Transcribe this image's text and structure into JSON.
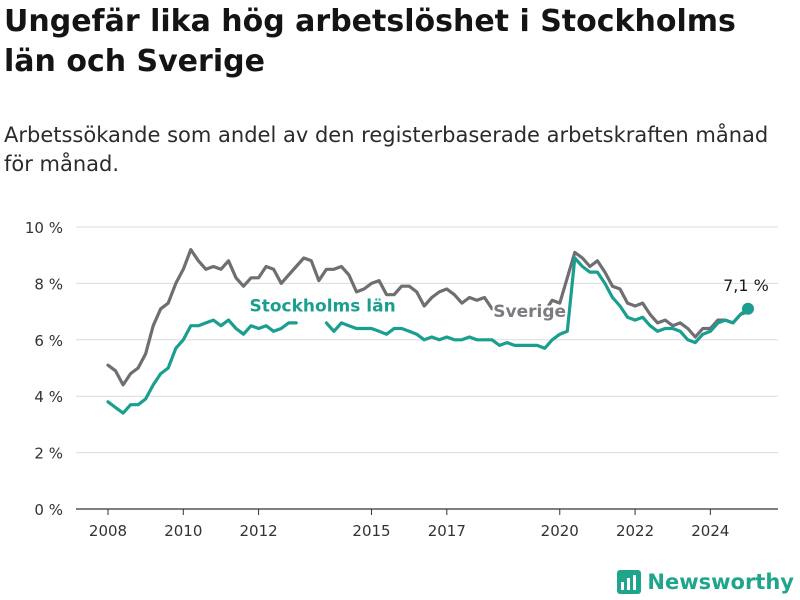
{
  "chart_data": {
    "type": "line",
    "title": "Ungefär lika hög arbetslöshet i Stockholms län och Sverige",
    "subtitle": "Arbetssökande som andel av den registerbaserade arbetskraften månad för månad.",
    "xlabel": "",
    "ylabel": "",
    "xlim": [
      2008.0,
      2025.0
    ],
    "ylim": [
      0,
      10
    ],
    "x_ticks": [
      2008,
      2010,
      2012,
      2015,
      2017,
      2020,
      2022,
      2024
    ],
    "x_tick_labels": [
      "2008",
      "2010",
      "2012",
      "2015",
      "2017",
      "2020",
      "2022",
      "2024"
    ],
    "y_ticks": [
      0,
      2,
      4,
      6,
      8,
      10
    ],
    "y_tick_labels": [
      "0 %",
      "2 %",
      "4 %",
      "6 %",
      "8 %",
      "10 %"
    ],
    "grid": "horizontal",
    "series": [
      {
        "name": "Sverige",
        "color": "#6e6e73",
        "points": [
          [
            2008.0,
            5.1
          ],
          [
            2008.2,
            4.9
          ],
          [
            2008.4,
            4.4
          ],
          [
            2008.6,
            4.8
          ],
          [
            2008.8,
            5.0
          ],
          [
            2009.0,
            5.5
          ],
          [
            2009.2,
            6.5
          ],
          [
            2009.4,
            7.1
          ],
          [
            2009.6,
            7.3
          ],
          [
            2009.8,
            8.0
          ],
          [
            2010.0,
            8.5
          ],
          [
            2010.2,
            9.2
          ],
          [
            2010.4,
            8.8
          ],
          [
            2010.6,
            8.5
          ],
          [
            2010.8,
            8.6
          ],
          [
            2011.0,
            8.5
          ],
          [
            2011.2,
            8.8
          ],
          [
            2011.4,
            8.2
          ],
          [
            2011.6,
            7.9
          ],
          [
            2011.8,
            8.2
          ],
          [
            2012.0,
            8.2
          ],
          [
            2012.2,
            8.6
          ],
          [
            2012.4,
            8.5
          ],
          [
            2012.6,
            8.0
          ],
          [
            2012.8,
            8.3
          ],
          [
            2013.0,
            8.6
          ],
          [
            2013.2,
            8.9
          ],
          [
            2013.4,
            8.8
          ],
          [
            2013.6,
            8.1
          ],
          [
            2013.8,
            8.5
          ],
          [
            2014.0,
            8.5
          ],
          [
            2014.2,
            8.6
          ],
          [
            2014.4,
            8.3
          ],
          [
            2014.6,
            7.7
          ],
          [
            2014.8,
            7.8
          ],
          [
            2015.0,
            8.0
          ],
          [
            2015.2,
            8.1
          ],
          [
            2015.4,
            7.6
          ],
          [
            2015.6,
            7.6
          ],
          [
            2015.8,
            7.9
          ],
          [
            2016.0,
            7.9
          ],
          [
            2016.2,
            7.7
          ],
          [
            2016.4,
            7.2
          ],
          [
            2016.6,
            7.5
          ],
          [
            2016.8,
            7.7
          ],
          [
            2017.0,
            7.8
          ],
          [
            2017.2,
            7.6
          ],
          [
            2017.4,
            7.3
          ],
          [
            2017.6,
            7.5
          ],
          [
            2017.8,
            7.4
          ],
          [
            2018.0,
            7.5
          ],
          [
            2018.2,
            7.1
          ]
        ]
      },
      {
        "name": "Sverige",
        "color": "#6e6e73",
        "points": [
          [
            2019.6,
            7.0
          ],
          [
            2019.8,
            7.4
          ],
          [
            2020.0,
            7.3
          ],
          [
            2020.2,
            8.2
          ],
          [
            2020.4,
            9.1
          ],
          [
            2020.6,
            8.9
          ],
          [
            2020.8,
            8.6
          ],
          [
            2021.0,
            8.8
          ],
          [
            2021.2,
            8.4
          ],
          [
            2021.4,
            7.9
          ],
          [
            2021.6,
            7.8
          ],
          [
            2021.8,
            7.3
          ],
          [
            2022.0,
            7.2
          ],
          [
            2022.2,
            7.3
          ],
          [
            2022.4,
            6.9
          ],
          [
            2022.6,
            6.6
          ],
          [
            2022.8,
            6.7
          ],
          [
            2023.0,
            6.5
          ],
          [
            2023.2,
            6.6
          ],
          [
            2023.4,
            6.4
          ],
          [
            2023.6,
            6.1
          ],
          [
            2023.8,
            6.4
          ],
          [
            2024.0,
            6.4
          ],
          [
            2024.2,
            6.7
          ],
          [
            2024.4,
            6.7
          ],
          [
            2024.6,
            6.6
          ],
          [
            2024.8,
            6.9
          ],
          [
            2025.0,
            7.0
          ]
        ]
      },
      {
        "name": "Stockholms län",
        "color": "#1a9e8f",
        "points": [
          [
            2008.0,
            3.8
          ],
          [
            2008.2,
            3.6
          ],
          [
            2008.4,
            3.4
          ],
          [
            2008.6,
            3.7
          ],
          [
            2008.8,
            3.7
          ],
          [
            2009.0,
            3.9
          ],
          [
            2009.2,
            4.4
          ],
          [
            2009.4,
            4.8
          ],
          [
            2009.6,
            5.0
          ],
          [
            2009.8,
            5.7
          ],
          [
            2010.0,
            6.0
          ],
          [
            2010.2,
            6.5
          ],
          [
            2010.4,
            6.5
          ],
          [
            2010.6,
            6.6
          ],
          [
            2010.8,
            6.7
          ],
          [
            2011.0,
            6.5
          ],
          [
            2011.2,
            6.7
          ],
          [
            2011.4,
            6.4
          ],
          [
            2011.6,
            6.2
          ],
          [
            2011.8,
            6.5
          ],
          [
            2012.0,
            6.4
          ],
          [
            2012.2,
            6.5
          ],
          [
            2012.4,
            6.3
          ],
          [
            2012.6,
            6.4
          ],
          [
            2012.8,
            6.6
          ],
          [
            2013.0,
            6.6
          ]
        ]
      },
      {
        "name": "Stockholms län",
        "color": "#1a9e8f",
        "points": [
          [
            2013.8,
            6.6
          ],
          [
            2014.0,
            6.3
          ],
          [
            2014.2,
            6.6
          ],
          [
            2014.4,
            6.5
          ],
          [
            2014.6,
            6.4
          ],
          [
            2014.8,
            6.4
          ],
          [
            2015.0,
            6.4
          ],
          [
            2015.2,
            6.3
          ],
          [
            2015.4,
            6.2
          ],
          [
            2015.6,
            6.4
          ],
          [
            2015.8,
            6.4
          ],
          [
            2016.0,
            6.3
          ],
          [
            2016.2,
            6.2
          ],
          [
            2016.4,
            6.0
          ],
          [
            2016.6,
            6.1
          ],
          [
            2016.8,
            6.0
          ],
          [
            2017.0,
            6.1
          ],
          [
            2017.2,
            6.0
          ],
          [
            2017.4,
            6.0
          ],
          [
            2017.6,
            6.1
          ],
          [
            2017.8,
            6.0
          ],
          [
            2018.0,
            6.0
          ],
          [
            2018.2,
            6.0
          ],
          [
            2018.4,
            5.8
          ],
          [
            2018.6,
            5.9
          ],
          [
            2018.8,
            5.8
          ],
          [
            2019.0,
            5.8
          ],
          [
            2019.2,
            5.8
          ],
          [
            2019.4,
            5.8
          ],
          [
            2019.6,
            5.7
          ],
          [
            2019.8,
            6.0
          ],
          [
            2020.0,
            6.2
          ],
          [
            2020.2,
            6.3
          ],
          [
            2020.4,
            8.9
          ],
          [
            2020.6,
            8.6
          ],
          [
            2020.8,
            8.4
          ],
          [
            2021.0,
            8.4
          ],
          [
            2021.2,
            8.0
          ],
          [
            2021.4,
            7.5
          ],
          [
            2021.6,
            7.2
          ],
          [
            2021.8,
            6.8
          ],
          [
            2022.0,
            6.7
          ],
          [
            2022.2,
            6.8
          ],
          [
            2022.4,
            6.5
          ],
          [
            2022.6,
            6.3
          ],
          [
            2022.8,
            6.4
          ],
          [
            2023.0,
            6.4
          ],
          [
            2023.2,
            6.3
          ],
          [
            2023.4,
            6.0
          ],
          [
            2023.6,
            5.9
          ],
          [
            2023.8,
            6.2
          ],
          [
            2024.0,
            6.3
          ],
          [
            2024.2,
            6.6
          ],
          [
            2024.4,
            6.7
          ],
          [
            2024.6,
            6.6
          ],
          [
            2024.8,
            6.9
          ],
          [
            2025.0,
            7.1
          ]
        ]
      }
    ],
    "series_labels": [
      {
        "text": "Stockholms län",
        "color": "#1a9e8f",
        "x": 2013.7,
        "y": 7.0
      },
      {
        "text": "Sverige",
        "color": "#7b7b80",
        "x": 2019.2,
        "y": 6.8
      }
    ],
    "endpoint": {
      "x": 2025.0,
      "y": 7.1,
      "label": "7,1 %",
      "color": "#1a9e8f"
    }
  },
  "brand": {
    "name": "Newsworthy",
    "color": "#20a58d"
  }
}
